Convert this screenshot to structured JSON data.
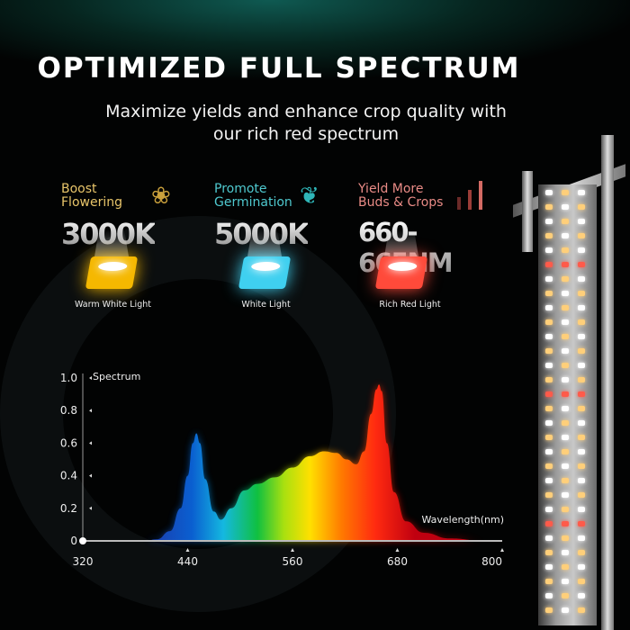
{
  "header": {
    "title": "OPTIMIZED FULL SPECTRUM",
    "subtitle_line1": "Maximize yields and enhance crop quality with",
    "subtitle_line2": "our rich red spectrum"
  },
  "features": [
    {
      "line1": "Boost",
      "line2": "Flowering",
      "value": "3000K",
      "label": "Warm White Light",
      "icon": "tulip-icon",
      "color": "#e8c56a",
      "chip_color": "#f5b800"
    },
    {
      "line1": "Promote",
      "line2": "Germination",
      "value": "5000K",
      "label": "White Light",
      "icon": "sprout-icon",
      "color": "#4fc9cf",
      "chip_color": "#3fd0f0"
    },
    {
      "line1": "Yield More",
      "line2": "Buds & Crops",
      "value": "660-665NM",
      "label": "Rich Red Light",
      "icon": "bar-chart-icon",
      "color": "#e98b86",
      "chip_color": "#ff4a3a"
    }
  ],
  "chart_data": {
    "type": "area",
    "title": "",
    "ylabel": "Spectrum",
    "xlabel": "Wavelength(nm)",
    "xlim": [
      320,
      800
    ],
    "ylim": [
      0,
      1.0
    ],
    "x_ticks": [
      "320",
      "440",
      "560",
      "680",
      "800"
    ],
    "y_ticks": [
      "0",
      "0.2",
      "0.4",
      "0.6",
      "0.8",
      "1.0"
    ],
    "grid": false,
    "series": [
      {
        "x": [
          320,
          390,
          405,
          420,
          432,
          440,
          446,
          450,
          454,
          460,
          470,
          478,
          490,
          505,
          520,
          540,
          560,
          580,
          596,
          610,
          622,
          633,
          642,
          650,
          656,
          659,
          662,
          668,
          676,
          690,
          710,
          740,
          780,
          800
        ],
        "y": [
          0,
          0,
          0.01,
          0.06,
          0.2,
          0.4,
          0.6,
          0.66,
          0.6,
          0.38,
          0.18,
          0.13,
          0.2,
          0.31,
          0.35,
          0.39,
          0.45,
          0.52,
          0.55,
          0.54,
          0.5,
          0.47,
          0.55,
          0.78,
          0.93,
          0.96,
          0.92,
          0.6,
          0.3,
          0.12,
          0.05,
          0.015,
          0,
          0
        ]
      }
    ]
  }
}
